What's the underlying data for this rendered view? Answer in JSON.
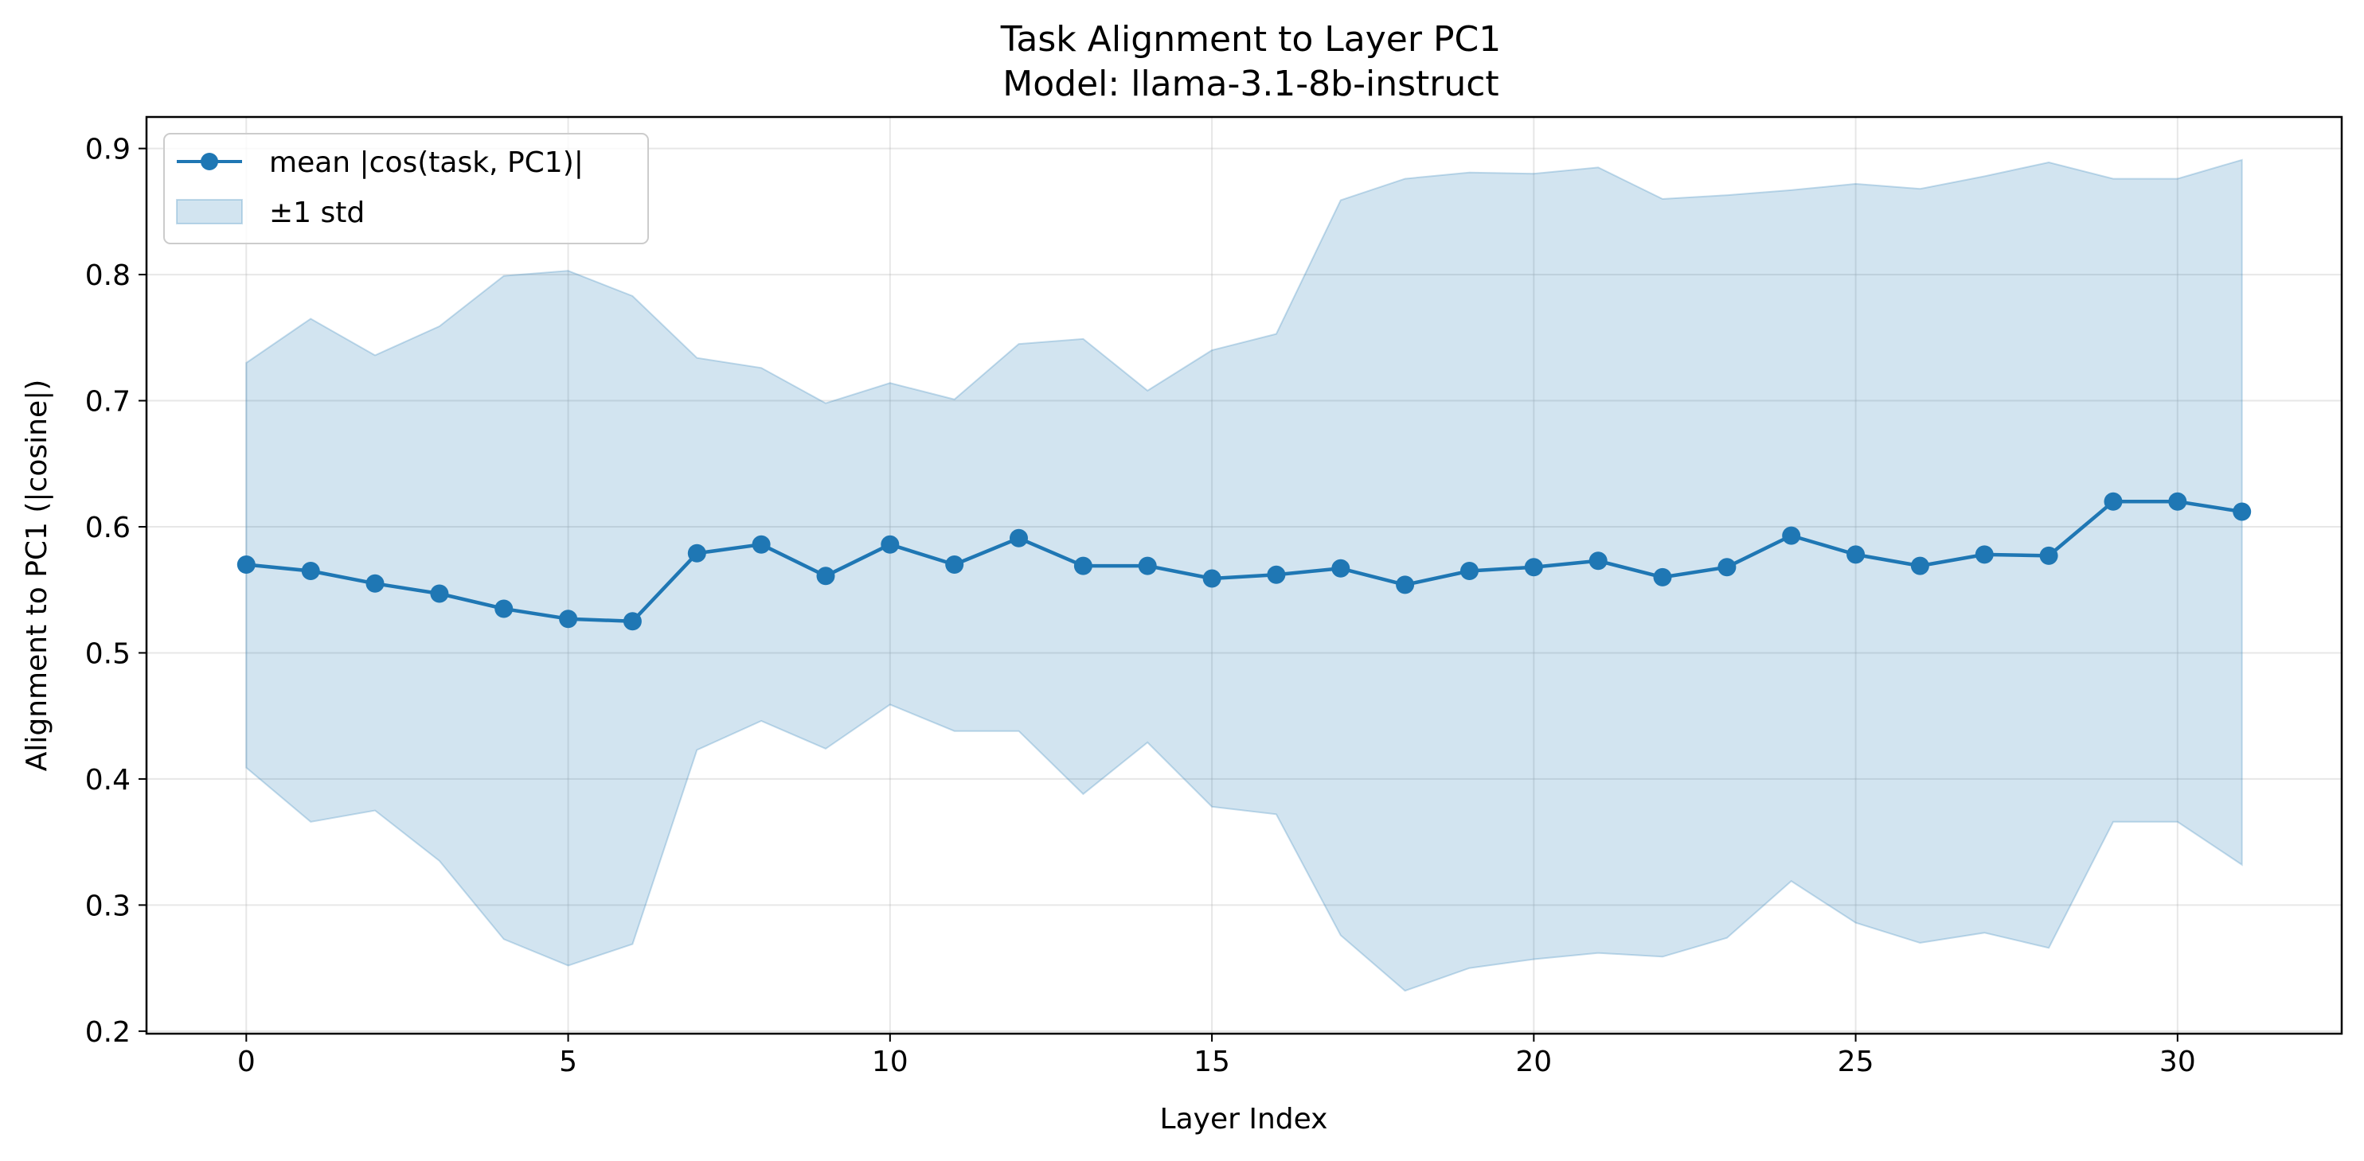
{
  "chart_data": {
    "type": "line",
    "title": "Task Alignment to Layer PC1",
    "subtitle": "Model: llama-3.1-8b-instruct",
    "xlabel": "Layer Index",
    "ylabel": "Alignment to PC1 (|cosine|)",
    "xlim": [
      -1.55,
      32.55
    ],
    "ylim": [
      0.198,
      0.925
    ],
    "xticks": [
      0,
      5,
      10,
      15,
      20,
      25,
      30
    ],
    "yticks": [
      0.2,
      0.3,
      0.4,
      0.5,
      0.6,
      0.7,
      0.8,
      0.9
    ],
    "xtick_labels": [
      "0",
      "5",
      "10",
      "15",
      "20",
      "25",
      "30"
    ],
    "ytick_labels": [
      "0.2",
      "0.3",
      "0.4",
      "0.5",
      "0.6",
      "0.7",
      "0.8",
      "0.9"
    ],
    "grid": true,
    "legend_position": "upper-left",
    "x": [
      0,
      1,
      2,
      3,
      4,
      5,
      6,
      7,
      8,
      9,
      10,
      11,
      12,
      13,
      14,
      15,
      16,
      17,
      18,
      19,
      20,
      21,
      22,
      23,
      24,
      25,
      26,
      27,
      28,
      29,
      30,
      31
    ],
    "series": [
      {
        "name": "mean |cos(task, PC1)|",
        "color": "#1f77b4",
        "marker": "circle",
        "values": [
          0.57,
          0.565,
          0.555,
          0.547,
          0.535,
          0.527,
          0.525,
          0.579,
          0.586,
          0.561,
          0.586,
          0.57,
          0.591,
          0.569,
          0.569,
          0.559,
          0.562,
          0.567,
          0.554,
          0.565,
          0.568,
          0.573,
          0.56,
          0.568,
          0.593,
          0.578,
          0.569,
          0.578,
          0.577,
          0.62,
          0.62,
          0.612
        ]
      }
    ],
    "band": {
      "name": "±1 std",
      "color": "#1f77b4",
      "opacity": 0.2,
      "upper": [
        0.73,
        0.765,
        0.736,
        0.759,
        0.799,
        0.803,
        0.783,
        0.734,
        0.726,
        0.698,
        0.714,
        0.701,
        0.745,
        0.749,
        0.708,
        0.74,
        0.753,
        0.859,
        0.876,
        0.881,
        0.88,
        0.885,
        0.86,
        0.863,
        0.867,
        0.872,
        0.868,
        0.878,
        0.889,
        0.876,
        0.876,
        0.891
      ],
      "lower": [
        0.409,
        0.366,
        0.375,
        0.335,
        0.273,
        0.252,
        0.269,
        0.423,
        0.446,
        0.424,
        0.459,
        0.438,
        0.438,
        0.388,
        0.429,
        0.378,
        0.372,
        0.276,
        0.232,
        0.25,
        0.257,
        0.262,
        0.259,
        0.274,
        0.319,
        0.286,
        0.27,
        0.278,
        0.266,
        0.366,
        0.366,
        0.332
      ]
    }
  }
}
